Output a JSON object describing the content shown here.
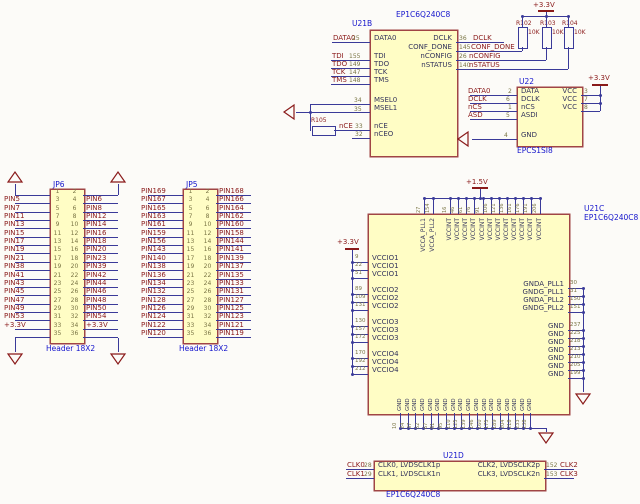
{
  "sheet": {
    "colors": {
      "wire": "#3a3a99",
      "part_border": "#a04545",
      "part_fill": "#fffdc5",
      "net_label": "#8a1a1a",
      "pin_number": "#7a7544",
      "designator": "#1414cc",
      "background": "#fcfbf8"
    },
    "u21b": {
      "designator": "U21B",
      "part_title": "EP1C6Q240C8",
      "left_pins": [
        {
          "name": "DATA0",
          "net": "DATA0",
          "num": "25"
        },
        {
          "name": "TDI",
          "net": "TDI",
          "num": "155"
        },
        {
          "name": "TDO",
          "net": "TDO",
          "num": "149"
        },
        {
          "name": "TCK",
          "net": "TCK",
          "num": "147"
        },
        {
          "name": "TMS",
          "net": "TMS",
          "num": "148"
        },
        {
          "name": "MSEL0",
          "net": "",
          "num": "34"
        },
        {
          "name": "MSEL1",
          "net": "",
          "num": "35"
        },
        {
          "name": "nCE",
          "net": "nCE",
          "num": "33"
        },
        {
          "name": "nCEO",
          "net": "",
          "num": "32"
        }
      ],
      "right_pins": [
        {
          "name": "DCLK",
          "net": "DCLK",
          "num": "36"
        },
        {
          "name": "CONF_DONE",
          "net": "CONF_DONE",
          "num": "145"
        },
        {
          "name": "nCONFIG",
          "net": "nCONFIG",
          "num": "26"
        },
        {
          "name": "nSTATUS",
          "net": "nSTATUS",
          "num": "140"
        }
      ]
    },
    "pullups": {
      "power_label": "+3.3V",
      "resistors": [
        {
          "designator": "R102",
          "value": "10K"
        },
        {
          "designator": "R103",
          "value": "10K"
        },
        {
          "designator": "R104",
          "value": "10K"
        }
      ]
    },
    "r105": {
      "designator": "R105"
    },
    "u22": {
      "designator": "U22",
      "part_title": "EPCS1SI8",
      "power_label": "+3.3V",
      "left_pins": [
        {
          "name": "DATA",
          "net": "DATA0",
          "num": "2"
        },
        {
          "name": "DCLK",
          "net": "DCLK",
          "num": "6"
        },
        {
          "name": "nCS",
          "net": "nCS",
          "num": "1"
        },
        {
          "name": "ASDI",
          "net": "ASD",
          "num": "5"
        },
        {
          "name": "GND",
          "net": "",
          "num": "4"
        }
      ],
      "right_pins": [
        {
          "name": "VCC",
          "num": "3"
        },
        {
          "name": "VCC",
          "num": "7"
        },
        {
          "name": "VCC",
          "num": "8"
        }
      ]
    },
    "jp6": {
      "designator": "JP6",
      "part_title": "Header 18X2",
      "rows": [
        {
          "ln": "1",
          "rn": "2",
          "l": "",
          "r": ""
        },
        {
          "ln": "3",
          "rn": "4",
          "l": "PIN5",
          "r": "PIN6"
        },
        {
          "ln": "5",
          "rn": "6",
          "l": "PIN7",
          "r": "PIN8"
        },
        {
          "ln": "7",
          "rn": "8",
          "l": "PIN11",
          "r": "PIN12"
        },
        {
          "ln": "9",
          "rn": "10",
          "l": "PIN13",
          "r": "PIN14"
        },
        {
          "ln": "11",
          "rn": "12",
          "l": "PIN15",
          "r": "PIN16"
        },
        {
          "ln": "13",
          "rn": "14",
          "l": "PIN17",
          "r": "PIN18"
        },
        {
          "ln": "15",
          "rn": "16",
          "l": "PIN19",
          "r": "PIN20"
        },
        {
          "ln": "17",
          "rn": "18",
          "l": "PIN21",
          "r": "PIN23"
        },
        {
          "ln": "19",
          "rn": "20",
          "l": "PIN38",
          "r": "PIN39"
        },
        {
          "ln": "21",
          "rn": "22",
          "l": "PIN41",
          "r": "PIN42"
        },
        {
          "ln": "23",
          "rn": "24",
          "l": "PIN43",
          "r": "PIN44"
        },
        {
          "ln": "25",
          "rn": "26",
          "l": "PIN45",
          "r": "PIN46"
        },
        {
          "ln": "27",
          "rn": "28",
          "l": "PIN47",
          "r": "PIN48"
        },
        {
          "ln": "29",
          "rn": "30",
          "l": "PIN49",
          "r": "PIN50"
        },
        {
          "ln": "31",
          "rn": "32",
          "l": "PIN53",
          "r": "PIN54"
        },
        {
          "ln": "33",
          "rn": "34",
          "l": "+3.3V",
          "r": "+3.3V"
        },
        {
          "ln": "35",
          "rn": "36",
          "l": "",
          "r": ""
        }
      ]
    },
    "jp5": {
      "designator": "JP5",
      "part_title": "Header 18X2",
      "rows": [
        {
          "ln": "1",
          "rn": "2",
          "l": "PIN169",
          "r": "PIN168"
        },
        {
          "ln": "3",
          "rn": "4",
          "l": "PIN167",
          "r": "PIN166"
        },
        {
          "ln": "5",
          "rn": "6",
          "l": "PIN165",
          "r": "PIN164"
        },
        {
          "ln": "7",
          "rn": "8",
          "l": "PIN163",
          "r": "PIN162"
        },
        {
          "ln": "9",
          "rn": "10",
          "l": "PIN161",
          "r": "PIN160"
        },
        {
          "ln": "11",
          "rn": "12",
          "l": "PIN159",
          "r": "PIN158"
        },
        {
          "ln": "13",
          "rn": "14",
          "l": "PIN156",
          "r": "PIN144"
        },
        {
          "ln": "15",
          "rn": "16",
          "l": "PIN143",
          "r": "PIN141"
        },
        {
          "ln": "17",
          "rn": "18",
          "l": "PIN140",
          "r": "PIN139"
        },
        {
          "ln": "19",
          "rn": "20",
          "l": "PIN138",
          "r": "PIN137"
        },
        {
          "ln": "21",
          "rn": "22",
          "l": "PIN136",
          "r": "PIN135"
        },
        {
          "ln": "23",
          "rn": "24",
          "l": "PIN134",
          "r": "PIN133"
        },
        {
          "ln": "25",
          "rn": "26",
          "l": "PIN132",
          "r": "PIN131"
        },
        {
          "ln": "27",
          "rn": "28",
          "l": "PIN128",
          "r": "PIN127"
        },
        {
          "ln": "29",
          "rn": "30",
          "l": "PIN126",
          "r": "PIN125"
        },
        {
          "ln": "31",
          "rn": "32",
          "l": "PIN124",
          "r": "PIN123"
        },
        {
          "ln": "33",
          "rn": "34",
          "l": "PIN122",
          "r": "PIN121"
        },
        {
          "ln": "35",
          "rn": "36",
          "l": "PIN120",
          "r": "PIN119"
        }
      ]
    },
    "u21c": {
      "designator": "U21C",
      "part_title": "EP1C6Q240C8",
      "power_top": "+1.5V",
      "power_left": "+3.3V",
      "top_pins": [
        {
          "name": "VCCA_PLL1",
          "num": "27"
        },
        {
          "name": "VCCA_PLL2",
          "num": "154"
        },
        {
          "name": "VCCINT",
          "num": "16"
        },
        {
          "name": "VCCINT",
          "num": "46"
        },
        {
          "name": "VCCINT",
          "num": "61"
        },
        {
          "name": "VCCINT",
          "num": "76"
        },
        {
          "name": "VCCINT",
          "num": "91"
        },
        {
          "name": "VCCINT",
          "num": "106"
        },
        {
          "name": "VCCINT",
          "num": "121"
        },
        {
          "name": "VCCINT",
          "num": "136"
        },
        {
          "name": "VCCINT",
          "num": "161"
        },
        {
          "name": "VCCINT",
          "num": "176"
        },
        {
          "name": "VCCINT",
          "num": "191"
        },
        {
          "name": "VCCINT",
          "num": "206"
        }
      ],
      "left_pins": [
        {
          "name": "VCCIO1",
          "num": "9"
        },
        {
          "name": "VCCIO1",
          "num": "22"
        },
        {
          "name": "VCCIO1",
          "num": "51"
        },
        {
          "name": "VCCIO2",
          "num": "89"
        },
        {
          "name": "VCCIO2",
          "num": "109"
        },
        {
          "name": "VCCIO2",
          "num": "131"
        },
        {
          "name": "VCCIO3",
          "num": "130"
        },
        {
          "name": "VCCIO3",
          "num": "157"
        },
        {
          "name": "VCCIO3",
          "num": "172"
        },
        {
          "name": "VCCIO4",
          "num": "170"
        },
        {
          "name": "VCCIO4",
          "num": "192"
        },
        {
          "name": "VCCIO4",
          "num": "212"
        }
      ],
      "right_pins": [
        {
          "name": "GNDA_PLL1",
          "num": "30"
        },
        {
          "name": "GNDG_PLL1",
          "num": "31"
        },
        {
          "name": "GNDA_PLL2",
          "num": "150"
        },
        {
          "name": "GNDG_PLL2",
          "num": "151"
        },
        {
          "name": "GND",
          "num": "237"
        },
        {
          "name": "GND",
          "num": "225"
        },
        {
          "name": "GND",
          "num": "218"
        },
        {
          "name": "GND",
          "num": "213"
        },
        {
          "name": "GND",
          "num": "210"
        },
        {
          "name": "GND",
          "num": "205"
        },
        {
          "name": "GND",
          "num": "199"
        }
      ],
      "bottom_pins": [
        {
          "name": "GND",
          "num": "10"
        },
        {
          "name": "GND",
          "num": "24"
        },
        {
          "name": "GND",
          "num": "37"
        },
        {
          "name": "GND",
          "num": "52"
        },
        {
          "name": "GND",
          "num": "67"
        },
        {
          "name": "GND",
          "num": "81"
        },
        {
          "name": "GND",
          "num": "95"
        },
        {
          "name": "GND",
          "num": "110"
        },
        {
          "name": "GND",
          "num": "125"
        },
        {
          "name": "GND",
          "num": "139"
        },
        {
          "name": "GND",
          "num": "146"
        },
        {
          "name": "GND",
          "num": "160"
        },
        {
          "name": "GND",
          "num": "175"
        },
        {
          "name": "GND",
          "num": "189"
        },
        {
          "name": "GND",
          "num": "204"
        },
        {
          "name": "GND",
          "num": "218"
        },
        {
          "name": "GND",
          "num": "233"
        },
        {
          "name": "GND",
          "num": "238"
        }
      ]
    },
    "u21d": {
      "designator": "U21D",
      "part_title": "EP1C6Q240C8",
      "left_pins": [
        {
          "name": "CLK0, LVDSCLK1p",
          "net": "CLK0",
          "num": "28"
        },
        {
          "name": "CLK1, LVDSCLK1n",
          "net": "CLK1",
          "num": "29"
        }
      ],
      "right_pins": [
        {
          "name": "CLK2, LVDSCLK2p",
          "net": "CLK2",
          "num": "152"
        },
        {
          "name": "CLK3, LVDSCLK2n",
          "net": "CLK3",
          "num": "153"
        }
      ]
    }
  }
}
